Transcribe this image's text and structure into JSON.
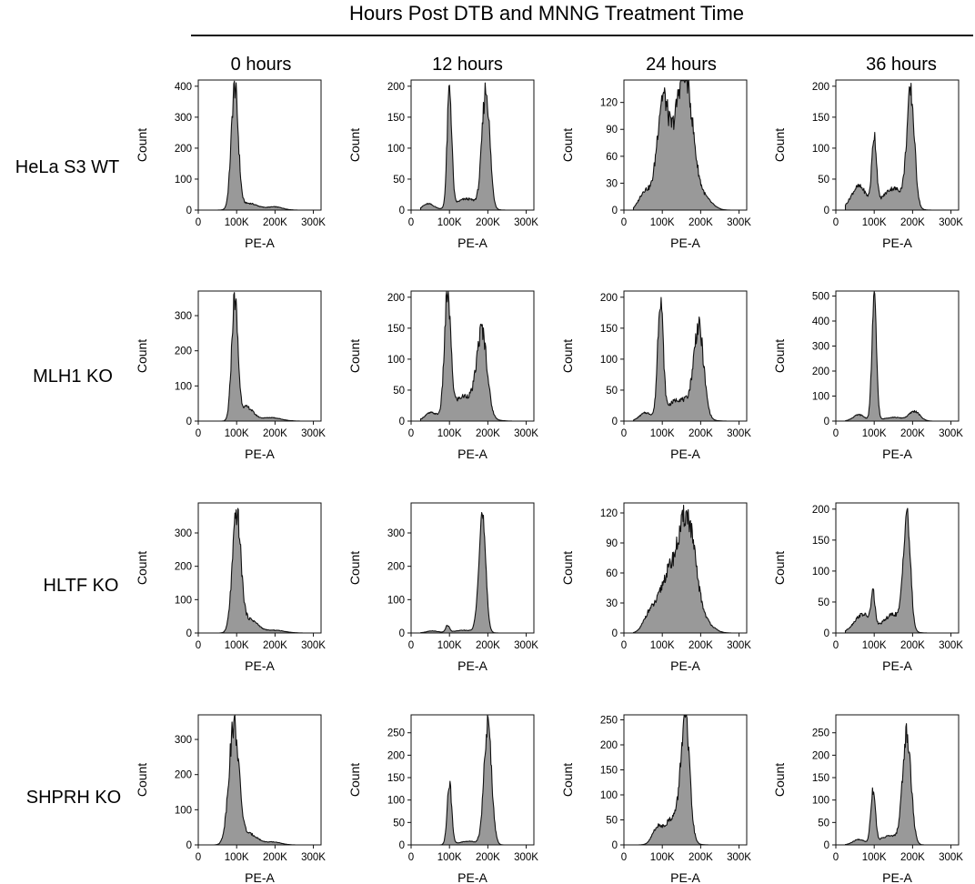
{
  "figure": {
    "title": "Hours Post DTB and MNNG Treatment Time",
    "columns": [
      "0 hours",
      "12 hours",
      "24 hours",
      "36 hours"
    ],
    "rows": [
      "HeLa S3 WT",
      "MLH1 KO",
      "HLTF KO",
      "SHPRH KO"
    ],
    "xlabel": "PE-A",
    "ylabel": "Count",
    "x_ticks": [
      "0",
      "100K",
      "200K",
      "300K"
    ],
    "fill_color": "#999999",
    "line_color": "#111111"
  },
  "chart_data": [
    {
      "type": "area",
      "row": "HeLa S3 WT",
      "column": "0 hours",
      "xlabel": "PE-A",
      "ylabel": "Count",
      "xlim": [
        0,
        320000
      ],
      "ylim": [
        0,
        420
      ],
      "y_ticks": [
        0,
        100,
        200,
        300,
        400
      ],
      "peaks": [
        {
          "center": 95000,
          "height": 390,
          "width": 9000
        },
        {
          "center": 130000,
          "height": 22,
          "width": 25000
        },
        {
          "center": 200000,
          "height": 10,
          "width": 20000
        }
      ]
    },
    {
      "type": "area",
      "row": "HeLa S3 WT",
      "column": "12 hours",
      "xlabel": "PE-A",
      "ylabel": "Count",
      "xlim": [
        0,
        320000
      ],
      "ylim": [
        0,
        210
      ],
      "y_ticks": [
        0,
        50,
        100,
        150,
        200
      ],
      "peaks": [
        {
          "center": 100000,
          "height": 190,
          "width": 6000
        },
        {
          "center": 195000,
          "height": 190,
          "width": 10000
        },
        {
          "center": 145000,
          "height": 18,
          "width": 30000
        },
        {
          "center": 45000,
          "height": 10,
          "width": 15000
        }
      ]
    },
    {
      "type": "area",
      "row": "HeLa S3 WT",
      "column": "24 hours",
      "xlabel": "PE-A",
      "ylabel": "Count",
      "xlim": [
        0,
        320000
      ],
      "ylim": [
        0,
        145
      ],
      "y_ticks": [
        0,
        30,
        60,
        90,
        120
      ],
      "peaks": [
        {
          "center": 100000,
          "height": 95,
          "width": 14000
        },
        {
          "center": 160000,
          "height": 125,
          "width": 20000
        },
        {
          "center": 130000,
          "height": 50,
          "width": 30000
        },
        {
          "center": 55000,
          "height": 20,
          "width": 15000
        },
        {
          "center": 210000,
          "height": 12,
          "width": 20000
        }
      ]
    },
    {
      "type": "area",
      "row": "HeLa S3 WT",
      "column": "36 hours",
      "xlabel": "PE-A",
      "ylabel": "Count",
      "xlim": [
        0,
        320000
      ],
      "ylim": [
        0,
        210
      ],
      "y_ticks": [
        0,
        50,
        100,
        150,
        200
      ],
      "peaks": [
        {
          "center": 100000,
          "height": 110,
          "width": 6000
        },
        {
          "center": 195000,
          "height": 180,
          "width": 10000
        },
        {
          "center": 60000,
          "height": 38,
          "width": 20000
        },
        {
          "center": 150000,
          "height": 35,
          "width": 28000
        }
      ]
    },
    {
      "type": "area",
      "row": "MLH1 KO",
      "column": "0 hours",
      "xlabel": "PE-A",
      "ylabel": "Count",
      "xlim": [
        0,
        320000
      ],
      "ylim": [
        0,
        370
      ],
      "y_ticks": [
        0,
        100,
        200,
        300
      ],
      "peaks": [
        {
          "center": 95000,
          "height": 340,
          "width": 8000
        },
        {
          "center": 125000,
          "height": 40,
          "width": 18000
        },
        {
          "center": 190000,
          "height": 10,
          "width": 25000
        }
      ]
    },
    {
      "type": "area",
      "row": "MLH1 KO",
      "column": "12 hours",
      "xlabel": "PE-A",
      "ylabel": "Count",
      "xlim": [
        0,
        320000
      ],
      "ylim": [
        0,
        210
      ],
      "y_ticks": [
        0,
        50,
        100,
        150,
        200
      ],
      "peaks": [
        {
          "center": 95000,
          "height": 190,
          "width": 8000
        },
        {
          "center": 185000,
          "height": 130,
          "width": 13000
        },
        {
          "center": 140000,
          "height": 40,
          "width": 35000
        },
        {
          "center": 50000,
          "height": 12,
          "width": 15000
        }
      ]
    },
    {
      "type": "area",
      "row": "MLH1 KO",
      "column": "24 hours",
      "xlabel": "PE-A",
      "ylabel": "Count",
      "xlim": [
        0,
        320000
      ],
      "ylim": [
        0,
        210
      ],
      "y_ticks": [
        0,
        50,
        100,
        150,
        200
      ],
      "peaks": [
        {
          "center": 95000,
          "height": 190,
          "width": 7000
        },
        {
          "center": 195000,
          "height": 140,
          "width": 13000
        },
        {
          "center": 145000,
          "height": 35,
          "width": 35000
        },
        {
          "center": 55000,
          "height": 12,
          "width": 15000
        }
      ]
    },
    {
      "type": "area",
      "row": "MLH1 KO",
      "column": "36 hours",
      "xlabel": "PE-A",
      "ylabel": "Count",
      "xlim": [
        0,
        320000
      ],
      "ylim": [
        0,
        520
      ],
      "y_ticks": [
        0,
        100,
        200,
        300,
        400,
        500
      ],
      "peaks": [
        {
          "center": 100000,
          "height": 480,
          "width": 6000
        },
        {
          "center": 205000,
          "height": 38,
          "width": 14000
        },
        {
          "center": 60000,
          "height": 25,
          "width": 15000
        },
        {
          "center": 150000,
          "height": 15,
          "width": 25000
        }
      ]
    },
    {
      "type": "area",
      "row": "HLTF KO",
      "column": "0 hours",
      "xlabel": "PE-A",
      "ylabel": "Count",
      "xlim": [
        0,
        320000
      ],
      "ylim": [
        0,
        390
      ],
      "y_ticks": [
        0,
        100,
        200,
        300
      ],
      "peaks": [
        {
          "center": 100000,
          "height": 350,
          "width": 11000
        },
        {
          "center": 135000,
          "height": 40,
          "width": 20000
        },
        {
          "center": 200000,
          "height": 8,
          "width": 25000
        }
      ]
    },
    {
      "type": "area",
      "row": "HLTF KO",
      "column": "12 hours",
      "xlabel": "PE-A",
      "ylabel": "Count",
      "xlim": [
        0,
        320000
      ],
      "ylim": [
        0,
        390
      ],
      "y_ticks": [
        0,
        100,
        200,
        300
      ],
      "peaks": [
        {
          "center": 185000,
          "height": 350,
          "width": 9000
        },
        {
          "center": 95000,
          "height": 20,
          "width": 5000
        },
        {
          "center": 140000,
          "height": 8,
          "width": 30000
        },
        {
          "center": 55000,
          "height": 6,
          "width": 15000
        }
      ]
    },
    {
      "type": "area",
      "row": "HLTF KO",
      "column": "24 hours",
      "xlabel": "PE-A",
      "ylabel": "Count",
      "xlim": [
        0,
        320000
      ],
      "ylim": [
        0,
        130
      ],
      "y_ticks": [
        0,
        30,
        60,
        90,
        120
      ],
      "peaks": [
        {
          "center": 165000,
          "height": 110,
          "width": 22000
        },
        {
          "center": 115000,
          "height": 55,
          "width": 25000
        },
        {
          "center": 65000,
          "height": 15,
          "width": 15000
        },
        {
          "center": 215000,
          "height": 8,
          "width": 20000
        }
      ]
    },
    {
      "type": "area",
      "row": "HLTF KO",
      "column": "36 hours",
      "xlabel": "PE-A",
      "ylabel": "Count",
      "xlim": [
        0,
        320000
      ],
      "ylim": [
        0,
        210
      ],
      "y_ticks": [
        0,
        50,
        100,
        150,
        200
      ],
      "peaks": [
        {
          "center": 185000,
          "height": 185,
          "width": 9000
        },
        {
          "center": 97000,
          "height": 50,
          "width": 5000
        },
        {
          "center": 70000,
          "height": 30,
          "width": 22000
        },
        {
          "center": 150000,
          "height": 30,
          "width": 25000
        }
      ]
    },
    {
      "type": "area",
      "row": "SHPRH KO",
      "column": "0 hours",
      "xlabel": "PE-A",
      "ylabel": "Count",
      "xlim": [
        0,
        320000
      ],
      "ylim": [
        0,
        370
      ],
      "y_ticks": [
        0,
        100,
        200,
        300
      ],
      "peaks": [
        {
          "center": 93000,
          "height": 340,
          "width": 13000
        },
        {
          "center": 135000,
          "height": 30,
          "width": 20000
        },
        {
          "center": 195000,
          "height": 8,
          "width": 20000
        }
      ]
    },
    {
      "type": "area",
      "row": "SHPRH KO",
      "column": "12 hours",
      "xlabel": "PE-A",
      "ylabel": "Count",
      "xlim": [
        0,
        320000
      ],
      "ylim": [
        0,
        290
      ],
      "y_ticks": [
        0,
        50,
        100,
        150,
        200,
        250
      ],
      "peaks": [
        {
          "center": 100000,
          "height": 135,
          "width": 6000
        },
        {
          "center": 200000,
          "height": 265,
          "width": 10000
        },
        {
          "center": 150000,
          "height": 8,
          "width": 25000
        }
      ]
    },
    {
      "type": "area",
      "row": "SHPRH KO",
      "column": "24 hours",
      "xlabel": "PE-A",
      "ylabel": "Count",
      "xlim": [
        0,
        320000
      ],
      "ylim": [
        0,
        260
      ],
      "y_ticks": [
        0,
        50,
        100,
        150,
        200,
        250
      ],
      "peaks": [
        {
          "center": 160000,
          "height": 230,
          "width": 11000
        },
        {
          "center": 130000,
          "height": 55,
          "width": 25000
        },
        {
          "center": 85000,
          "height": 25,
          "width": 12000
        }
      ]
    },
    {
      "type": "area",
      "row": "SHPRH KO",
      "column": "36 hours",
      "xlabel": "PE-A",
      "ylabel": "Count",
      "xlim": [
        0,
        320000
      ],
      "ylim": [
        0,
        290
      ],
      "y_ticks": [
        0,
        50,
        100,
        150,
        200,
        250
      ],
      "peaks": [
        {
          "center": 97000,
          "height": 120,
          "width": 6000
        },
        {
          "center": 185000,
          "height": 245,
          "width": 11000
        },
        {
          "center": 140000,
          "height": 20,
          "width": 25000
        },
        {
          "center": 60000,
          "height": 12,
          "width": 15000
        }
      ]
    }
  ]
}
